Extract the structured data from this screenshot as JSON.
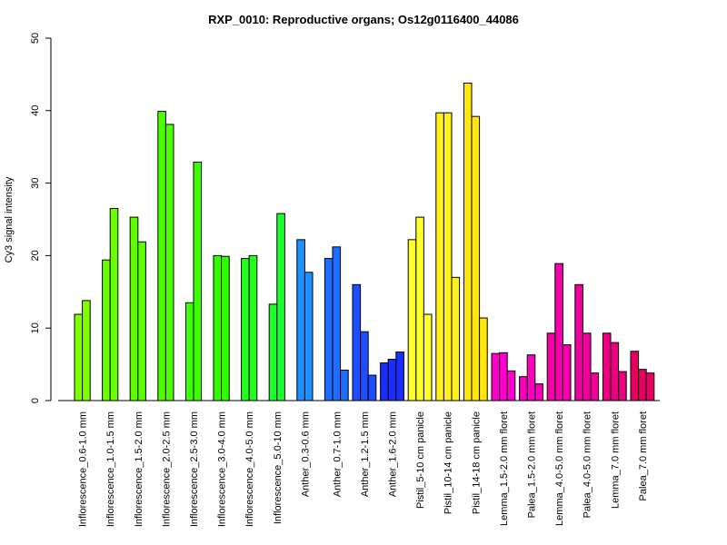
{
  "chart_data": {
    "type": "bar",
    "title": "RXP_0010: Reproductive organs; Os12g0116400_44086",
    "xlabel": "",
    "ylabel": "Cy3 signal intensity",
    "ylim": [
      0,
      50
    ],
    "yticks": [
      0,
      10,
      20,
      30,
      40,
      50
    ],
    "grid": false,
    "legend": "none",
    "groups": [
      {
        "label": "Inflorescence_0.6-1.0 mm",
        "color": "#7FFF00",
        "values": [
          11.9,
          13.8
        ]
      },
      {
        "label": "Inflorescence_1.0-1.5 mm",
        "color": "#6CFF00",
        "values": [
          19.4,
          26.5
        ]
      },
      {
        "label": "Inflorescence_1.5-2.0 mm",
        "color": "#5BFF00",
        "values": [
          25.3,
          21.9
        ]
      },
      {
        "label": "Inflorescence_2.0-2.5 mm",
        "color": "#4BFF00",
        "values": [
          39.9,
          38.1
        ]
      },
      {
        "label": "Inflorescence_2.5-3.0 mm",
        "color": "#3EFF00",
        "values": [
          13.5,
          32.9
        ]
      },
      {
        "label": "Inflorescence_3.0-4.0 mm",
        "color": "#30FF00",
        "values": [
          20.0,
          19.9
        ]
      },
      {
        "label": "Inflorescence_4.0-5.0 mm",
        "color": "#24FF1A",
        "values": [
          19.6,
          20.0
        ]
      },
      {
        "label": "Inflorescence_5.0-10 mm",
        "color": "#1AFF2E",
        "values": [
          13.3,
          25.8
        ]
      },
      {
        "label": "Anther_0.3-0.6 mm",
        "color": "#1E90FF",
        "values": [
          22.2,
          17.7
        ]
      },
      {
        "label": "Anther_0.7-1.0 mm",
        "color": "#1C6EFF",
        "values": [
          19.6,
          21.2,
          4.2
        ]
      },
      {
        "label": "Anther_1.2-1.5 mm",
        "color": "#1B4FFF",
        "values": [
          16.0,
          9.5,
          3.5
        ]
      },
      {
        "label": "Anther_1.6-2.0 mm",
        "color": "#1A2EFF",
        "values": [
          5.2,
          5.7,
          6.7
        ]
      },
      {
        "label": "Pistil_5-10 cm panicle",
        "color": "#FFFF2A",
        "values": [
          22.2,
          25.3,
          11.9
        ]
      },
      {
        "label": "Pistil_10-14 cm panicle",
        "color": "#FFF21C",
        "values": [
          39.7,
          39.7,
          17.0
        ]
      },
      {
        "label": "Pistil_14-18 cm panicle",
        "color": "#FFE60F",
        "values": [
          43.8,
          39.2,
          11.4
        ]
      },
      {
        "label": "Lemma_1.5-2.0 mm floret",
        "color": "#FF00CC",
        "values": [
          6.5,
          6.6,
          4.1
        ]
      },
      {
        "label": "Palea_1.5-2.0 mm floret",
        "color": "#FA00BE",
        "values": [
          3.3,
          6.3,
          2.3
        ]
      },
      {
        "label": "Lemma_4.0-5.0 mm floret",
        "color": "#F500AA",
        "values": [
          9.3,
          18.9,
          7.7
        ]
      },
      {
        "label": "Palea_4.0-5.0 mm floret",
        "color": "#F0009A",
        "values": [
          16.0,
          9.3,
          3.8
        ]
      },
      {
        "label": "Lemma_7.0 mm floret",
        "color": "#EB0080",
        "values": [
          9.3,
          8.0,
          4.0
        ]
      },
      {
        "label": "Palea_7.0 mm floret",
        "color": "#E6005F",
        "values": [
          6.8,
          4.3,
          3.8
        ]
      }
    ]
  }
}
